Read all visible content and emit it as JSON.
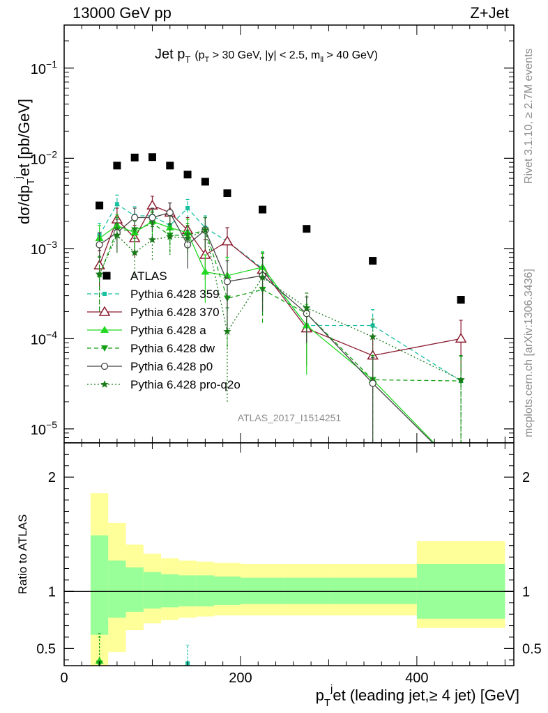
{
  "header": {
    "left": "13000 GeV pp",
    "right": "Z+Jet"
  },
  "side": {
    "rivet": "Rivet 3.1.10, ≥ 2.7M events",
    "mcplots": "mcplots.cern.ch [arXiv:1306.3436]"
  },
  "analysis_label": "ATLAS_2017_I1514251",
  "chart_data": [
    {
      "type": "scatter",
      "title": "Jet p_T (p_T > 30 GeV, |y| < 2.5, m_ll > 40 GeV)",
      "title_main": "Jet p",
      "title_main_sub": "T",
      "title_cut": "(p",
      "title_cut_sub": "T",
      "title_cut_rest": " > 30 GeV, |y| < 2.5, m",
      "title_cut_sub2": "ll",
      "title_cut_end": " > 40 GeV)",
      "ylabel": "dσ/dp_T^j et [pb/GeV]",
      "xlabel": "p_T^j et (leading jet,≥ 4 jet) [GeV]",
      "xlim": [
        0,
        510
      ],
      "ylim": [
        7e-06,
        0.3
      ],
      "y_scale": "log",
      "y_ticks": [
        {
          "v": 1e-05,
          "label": "10",
          "exp": "−5"
        },
        {
          "v": 0.0001,
          "label": "10",
          "exp": "−4"
        },
        {
          "v": 0.001,
          "label": "10",
          "exp": "−3"
        },
        {
          "v": 0.01,
          "label": "10",
          "exp": "−2"
        },
        {
          "v": 0.1,
          "label": "10",
          "exp": "−1"
        }
      ],
      "x_ticks": [
        0,
        200,
        400
      ],
      "x_tick_labels": [
        "0",
        "200",
        "400"
      ],
      "bins": [
        30,
        50,
        70,
        90,
        110,
        130,
        150,
        170,
        200,
        250,
        300,
        400,
        500
      ],
      "x": [
        40,
        60,
        80,
        100,
        120,
        140,
        160,
        185,
        225,
        275,
        350,
        450
      ],
      "series": [
        {
          "name": "ATLAS",
          "color": "#000000",
          "marker": "square",
          "values": [
            0.003,
            0.0083,
            0.0102,
            0.0103,
            0.0083,
            0.0066,
            0.0055,
            0.0041,
            0.0027,
            0.00165,
            0.00073,
            0.00027
          ]
        },
        {
          "name": "Pythia 6.428 359",
          "color": "#18c0a0",
          "marker": "small-square",
          "dash": "dashed",
          "values": [
            0.0014,
            0.0031,
            0.0023,
            0.0023,
            0.0018,
            0.0028,
            0.0017,
            0.0012,
            0.0006,
            0.00014,
            0.00014,
            3.4e-05
          ],
          "errors": [
            0.0005,
            0.0008,
            0.0006,
            0.0006,
            0.0006,
            0.0007,
            0.0006,
            0.0005,
            0.0003,
            8e-05,
            7e-05,
            3e-05
          ]
        },
        {
          "name": "Pythia 6.428 370",
          "color": "#8b1a2e",
          "marker": "open-triangle",
          "dash": "solid",
          "values": [
            0.00065,
            0.0021,
            0.0013,
            0.003,
            0.0025,
            0.0016,
            0.00085,
            0.0012,
            0.00058,
            0.00013,
            6.5e-05,
            0.0001
          ],
          "errors": [
            0.0003,
            0.0007,
            0.0005,
            0.0008,
            0.0007,
            0.0006,
            0.0004,
            0.0005,
            0.0003,
            8e-05,
            4e-05,
            6e-05
          ]
        },
        {
          "name": "Pythia 6.428 a",
          "color": "#22d822",
          "marker": "filled-triangle",
          "dash": "solid",
          "values": [
            0.0013,
            0.0018,
            0.0015,
            0.002,
            0.0017,
            0.0015,
            0.00055,
            0.0005,
            0.00062,
            0.00014,
            3.5e-05,
            0.0
          ],
          "errors": [
            0.0005,
            0.0006,
            0.0005,
            0.0006,
            0.0006,
            0.0006,
            0.0003,
            0.0003,
            0.0003,
            0.0001,
            3e-05,
            0
          ]
        },
        {
          "name": "Pythia 6.428 dw",
          "color": "#14a014",
          "marker": "filled-down-triangle",
          "dash": "dashed",
          "values": [
            0.0005,
            0.0016,
            0.0016,
            0.0019,
            0.0014,
            0.0014,
            0.0016,
            0.00028,
            0.00035,
            0.00019,
            3.5e-05,
            3.4e-05
          ],
          "errors": [
            0.0003,
            0.0006,
            0.0006,
            0.0006,
            0.0005,
            0.0005,
            0.0006,
            0.0002,
            0.0002,
            0.0001,
            3e-05,
            3e-05
          ]
        },
        {
          "name": "Pythia 6.428 p0",
          "color": "#444444",
          "marker": "open-circle",
          "dash": "solid",
          "values": [
            0.0011,
            0.0015,
            0.0022,
            0.0022,
            0.0025,
            0.0011,
            0.0016,
            0.00043,
            0.0005,
            0.00019,
            3.2e-05,
            0.0
          ],
          "errors": [
            0.0004,
            0.0006,
            0.0006,
            0.0006,
            0.0007,
            0.0005,
            0.0006,
            0.0003,
            0.0003,
            0.0001,
            3e-05,
            0
          ]
        },
        {
          "name": "Pythia 6.428 pro-q2o",
          "color": "#1a7a1a",
          "marker": "star",
          "dash": "dotted",
          "values": [
            0.00052,
            0.0014,
            0.0009,
            0.00125,
            0.00135,
            0.0013,
            0.0016,
            0.00012,
            0.00048,
            0.00022,
            0.000105,
            3.5e-05
          ],
          "errors": [
            0.0003,
            0.0005,
            0.0004,
            0.0005,
            0.0005,
            0.0005,
            0.0006,
            0.0001,
            0.0003,
            0.0001,
            6e-05,
            3e-05
          ]
        }
      ],
      "legend_position": "center-left"
    },
    {
      "type": "area",
      "title": "",
      "ylabel": "Ratio to ATLAS",
      "ylim": [
        0.35,
        2.3
      ],
      "y_ticks": [
        0.5,
        1,
        2
      ],
      "y_tick_labels": [
        "0.5",
        "1",
        "2"
      ],
      "reference_line": 1,
      "band_bins": [
        30,
        50,
        70,
        90,
        110,
        130,
        150,
        170,
        200,
        250,
        300,
        400,
        500
      ],
      "inner_band": {
        "color": "#99ff99",
        "lo": [
          0.62,
          0.77,
          0.82,
          0.85,
          0.86,
          0.87,
          0.87,
          0.88,
          0.89,
          0.89,
          0.89,
          0.76
        ],
        "hi": [
          1.49,
          1.27,
          1.21,
          1.17,
          1.15,
          1.14,
          1.14,
          1.13,
          1.12,
          1.12,
          1.12,
          1.24
        ]
      },
      "outer_band": {
        "color": "#ffff99",
        "lo": [
          0.35,
          0.47,
          0.66,
          0.72,
          0.75,
          0.77,
          0.78,
          0.79,
          0.79,
          0.79,
          0.79,
          0.68
        ],
        "hi": [
          1.86,
          1.6,
          1.41,
          1.33,
          1.29,
          1.27,
          1.26,
          1.25,
          1.24,
          1.24,
          1.24,
          1.44
        ]
      },
      "ratio_points": [
        {
          "series": "Pythia 6.428 a",
          "x": 40,
          "y": 0.39,
          "color": "#22d822",
          "marker": "filled-triangle",
          "err": [
            0.35,
            0.6
          ]
        },
        {
          "series": "Pythia 6.428 dw",
          "x": 40,
          "y": 0.37,
          "color": "#14a014",
          "marker": "filled-down-triangle",
          "err": [
            0.35,
            0.63
          ]
        },
        {
          "series": "Pythia 6.428 359",
          "x": 140,
          "y": 0.37,
          "color": "#18c0a0",
          "marker": "small-square",
          "err": [
            0.35,
            0.53
          ]
        }
      ]
    }
  ]
}
